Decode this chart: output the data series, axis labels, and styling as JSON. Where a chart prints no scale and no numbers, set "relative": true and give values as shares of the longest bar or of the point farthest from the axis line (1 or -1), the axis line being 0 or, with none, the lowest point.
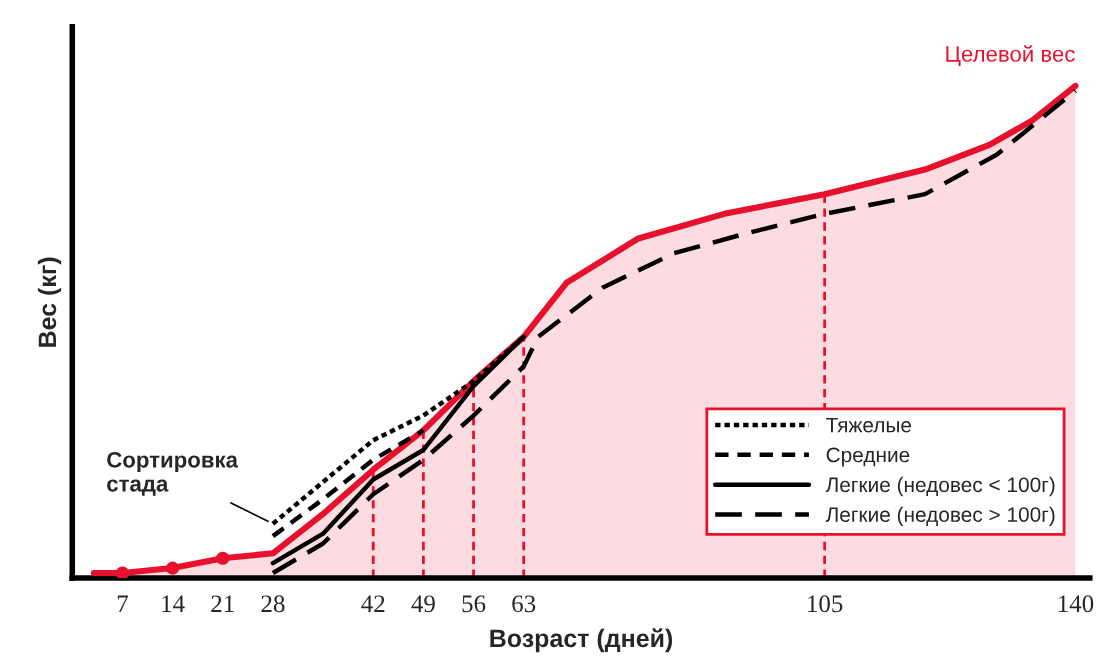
{
  "chart_data": {
    "type": "line",
    "relative": true,
    "xlabel": "Возраст (дней)",
    "ylabel": "Вес (кг)",
    "xlim": [
      0,
      142
    ],
    "xticks": [
      7,
      14,
      21,
      28,
      42,
      49,
      56,
      63,
      105,
      140
    ],
    "series": [
      {
        "name": "Целевой вес",
        "type": "area",
        "color": "#e8112d",
        "x": [
          3,
          7,
          14,
          21,
          28,
          35,
          42,
          49,
          56,
          63,
          69,
          79,
          91,
          105,
          119,
          128,
          134,
          140
        ],
        "values": [
          0.01,
          0.01,
          0.02,
          0.04,
          0.05,
          0.13,
          0.22,
          0.3,
          0.4,
          0.49,
          0.6,
          0.69,
          0.74,
          0.78,
          0.83,
          0.88,
          0.93,
          1.0
        ]
      },
      {
        "type": "scatter",
        "color": "#e8112d",
        "marker": "circle",
        "x": [
          7,
          14,
          21
        ],
        "values": [
          0.01,
          0.02,
          0.04
        ]
      },
      {
        "name": "Тяжелые",
        "color": "#000000",
        "line_style": "dotted",
        "x": [
          28,
          35,
          42,
          49,
          56,
          63
        ],
        "values": [
          0.11,
          0.195,
          0.28,
          0.33,
          0.4,
          0.49
        ]
      },
      {
        "name": "Средние",
        "color": "#000000",
        "line_style": "dashed",
        "x": [
          28,
          35,
          42,
          49
        ],
        "values": [
          0.085,
          0.16,
          0.24,
          0.3
        ]
      },
      {
        "name": "Легкие (недовес < 100г)",
        "color": "#000000",
        "line_style": "solid",
        "x": [
          28,
          35,
          42,
          49,
          56,
          63
        ],
        "values": [
          0.03,
          0.09,
          0.2,
          0.26,
          0.39,
          0.49
        ]
      },
      {
        "name": "Легкие (недовес > 100г)",
        "color": "#000000",
        "line_style": "longdash",
        "x": [
          28,
          35,
          42,
          49,
          56,
          63,
          65,
          74,
          84,
          94,
          105,
          119,
          129,
          140
        ],
        "values": [
          0.01,
          0.07,
          0.17,
          0.24,
          0.33,
          0.43,
          0.49,
          0.59,
          0.66,
          0.7,
          0.74,
          0.78,
          0.86,
          0.99
        ]
      }
    ],
    "ref_lines": [
      {
        "axis": "x",
        "value": 42,
        "color": "#e8112d",
        "line_style": "dashed"
      },
      {
        "axis": "x",
        "value": 49,
        "color": "#e8112d",
        "line_style": "dashed"
      },
      {
        "axis": "x",
        "value": 56,
        "color": "#e8112d",
        "line_style": "dashed"
      },
      {
        "axis": "x",
        "value": 63,
        "color": "#e8112d",
        "line_style": "dashed"
      },
      {
        "axis": "x",
        "value": 105,
        "color": "#e8112d",
        "line_style": "dashed"
      }
    ],
    "annotations": [
      {
        "text": "Сортировка\nстада",
        "x": 28,
        "y": 0.11
      }
    ],
    "legend": "bottom right",
    "grid": false
  }
}
